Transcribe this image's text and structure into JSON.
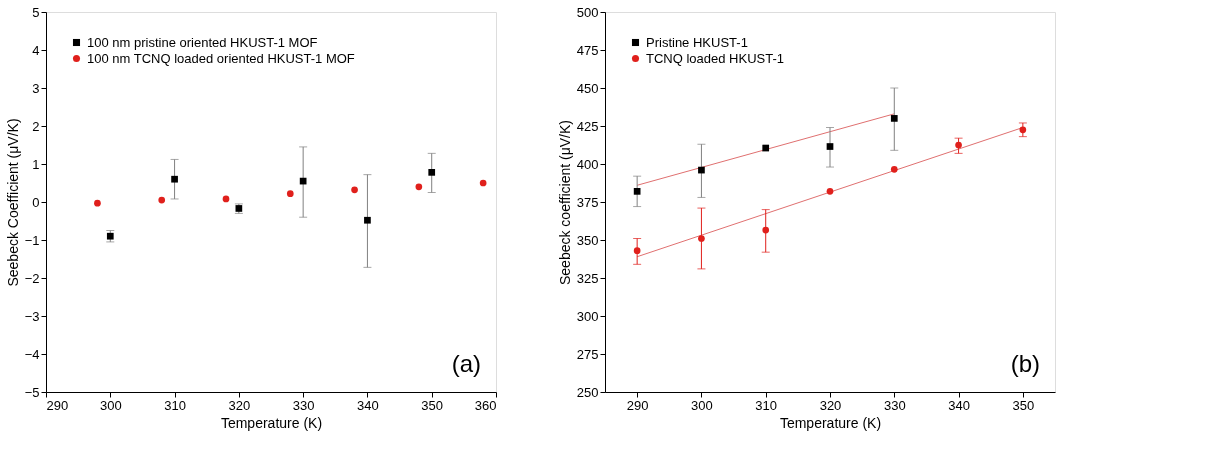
{
  "chart_data": [
    {
      "type": "scatter",
      "xlabel": "Temperature (K)",
      "ylabel": "Seebeck Coefficient (μV/K)",
      "xlim": [
        290,
        360
      ],
      "xticks": [
        290,
        300,
        310,
        320,
        330,
        340,
        350,
        360
      ],
      "ylim": [
        -5,
        5
      ],
      "yticks": [
        -5,
        -4,
        -3,
        -2,
        -1,
        0,
        1,
        2,
        3,
        4,
        5
      ],
      "grid": false,
      "legend": "top left",
      "annotations": [
        "(a)"
      ],
      "series": [
        {
          "name": "100 nm pristine oriented HKUST-1 MOF",
          "color": "#000000",
          "marker": "square",
          "x": [
            300,
            310,
            320,
            330,
            340,
            350
          ],
          "values": [
            -0.9,
            0.6,
            -0.17,
            0.55,
            -0.48,
            0.78
          ],
          "errors": [
            [
              -1.05,
              -0.75
            ],
            [
              0.08,
              1.12
            ],
            [
              -0.3,
              -0.05
            ],
            [
              -0.4,
              1.45
            ],
            [
              -1.72,
              0.72
            ],
            [
              0.25,
              1.28
            ]
          ]
        },
        {
          "name": "100 nm TCNQ loaded oriented HKUST-1 MOF",
          "color": "#e0201c",
          "marker": "circle",
          "x": [
            298,
            308,
            318,
            328,
            338,
            348,
            358
          ],
          "values": [
            -0.03,
            0.05,
            0.08,
            0.22,
            0.32,
            0.4,
            0.5
          ]
        }
      ]
    },
    {
      "type": "scatter",
      "xlabel": "Temperature (K)",
      "ylabel": "Seebeck coefficient (μV/K)",
      "xlim": [
        285,
        355
      ],
      "xticks": [
        290,
        300,
        310,
        320,
        330,
        340,
        350
      ],
      "ylim": [
        250,
        500
      ],
      "yticks": [
        250,
        275,
        300,
        325,
        350,
        375,
        400,
        425,
        450,
        475,
        500
      ],
      "grid": false,
      "legend": "top left",
      "annotations": [
        "(b)"
      ],
      "series": [
        {
          "type": "line",
          "color": "#e07070",
          "x": [
            290,
            330
          ],
          "values": [
            386,
            433
          ]
        },
        {
          "type": "line",
          "color": "#e07070",
          "x": [
            290,
            350
          ],
          "values": [
            339,
            424
          ]
        },
        {
          "name": "Pristine HKUST-1",
          "color": "#000000",
          "marker": "square",
          "x": [
            290,
            300,
            310,
            320,
            330
          ],
          "values": [
            382,
            396,
            410.5,
            411.5,
            430
          ],
          "errors": [
            [
              372,
              392
            ],
            [
              378,
              413
            ],
            null,
            [
              398,
              424
            ],
            [
              409,
              450
            ]
          ]
        },
        {
          "name": "TCNQ loaded HKUST-1",
          "color": "#e0201c",
          "marker": "circle",
          "x": [
            290,
            300,
            310,
            320,
            330,
            340,
            350
          ],
          "values": [
            343,
            351,
            356.5,
            382,
            396.5,
            412.5,
            422.5
          ],
          "errors": [
            [
              334,
              351
            ],
            [
              331,
              371
            ],
            [
              342,
              370
            ],
            null,
            null,
            [
              407,
              417
            ],
            [
              418,
              427
            ]
          ]
        }
      ]
    }
  ]
}
